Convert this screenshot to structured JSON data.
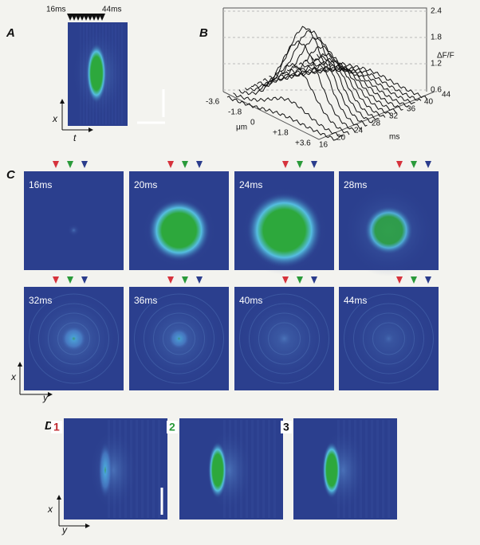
{
  "panel_a": {
    "label": "A",
    "start": "16ms",
    "end": "44ms",
    "x_axis": "x",
    "y_axis": "t"
  },
  "panel_b": {
    "label": "B",
    "z_ticks": [
      "2.4",
      "1.8",
      "1.2",
      "0.6"
    ],
    "z_label": "ΔF/F",
    "space_ticks": [
      "-3.6",
      "-1.8",
      "0",
      "+1.8",
      "+3.6"
    ],
    "space_unit": "μm",
    "time_ticks": [
      "16",
      "20",
      "24",
      "28",
      "32",
      "36",
      "40",
      "44"
    ],
    "time_unit": "ms"
  },
  "panel_c": {
    "label": "C",
    "frames": [
      "16ms",
      "20ms",
      "24ms",
      "28ms",
      "32ms",
      "36ms",
      "40ms",
      "44ms"
    ],
    "x_axis": "x",
    "y_axis": "y"
  },
  "panel_d": {
    "label": "D",
    "lines": [
      "1",
      "2",
      "3"
    ],
    "x_axis": "x",
    "y_axis": "y"
  }
}
